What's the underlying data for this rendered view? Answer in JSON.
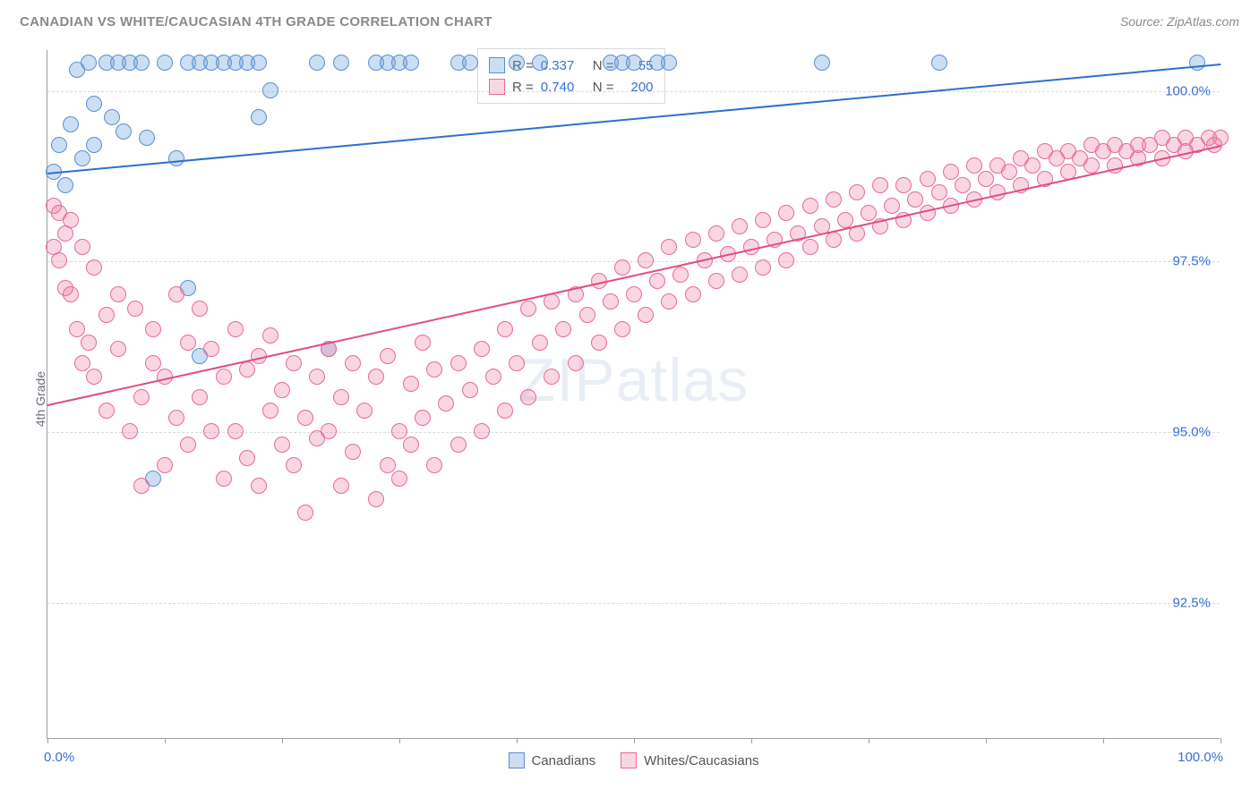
{
  "header": {
    "title": "CANADIAN VS WHITE/CAUCASIAN 4TH GRADE CORRELATION CHART",
    "source": "Source: ZipAtlas.com"
  },
  "axes": {
    "ylabel": "4th Grade",
    "ylim_min": 90.5,
    "ylim_max": 100.6,
    "xlim_min": 0,
    "xlim_max": 100,
    "yticks": [
      {
        "v": 92.5,
        "label": "92.5%"
      },
      {
        "v": 95.0,
        "label": "95.0%"
      },
      {
        "v": 97.5,
        "label": "97.5%"
      },
      {
        "v": 100.0,
        "label": "100.0%"
      }
    ],
    "xticks": [
      0,
      10,
      20,
      30,
      40,
      50,
      60,
      70,
      80,
      90,
      100
    ],
    "xlim_left_label": "0.0%",
    "xlim_right_label": "100.0%",
    "grid_color": "#d7dade",
    "axis_color": "#9aa0a6",
    "tick_label_color": "#3b6fd6"
  },
  "watermark": {
    "text_a": "ZIP",
    "text_b": "atlas"
  },
  "series": [
    {
      "id": "canadians",
      "label": "Canadians",
      "fill": "rgba(108,160,220,0.35)",
      "stroke": "#5a8fd0",
      "line_color": "#2f6fd0",
      "R_label": "R =",
      "R": "0.337",
      "N_label": "N =",
      "N": "55",
      "trend_y_at_x0": 98.8,
      "trend_y_at_x100": 100.4,
      "marker_radius": 9,
      "points": [
        [
          0.5,
          98.8
        ],
        [
          1,
          99.2
        ],
        [
          1.5,
          98.6
        ],
        [
          2,
          99.5
        ],
        [
          2.5,
          100.3
        ],
        [
          3,
          99.0
        ],
        [
          3.5,
          100.4
        ],
        [
          4,
          99.8
        ],
        [
          4,
          99.2
        ],
        [
          5,
          100.4
        ],
        [
          5.5,
          99.6
        ],
        [
          6,
          100.4
        ],
        [
          6.5,
          99.4
        ],
        [
          7,
          100.4
        ],
        [
          8,
          100.4
        ],
        [
          8.5,
          99.3
        ],
        [
          9,
          94.3
        ],
        [
          10,
          100.4
        ],
        [
          11,
          99.0
        ],
        [
          12,
          100.4
        ],
        [
          12,
          97.1
        ],
        [
          13,
          100.4
        ],
        [
          13,
          96.1
        ],
        [
          14,
          100.4
        ],
        [
          15,
          100.4
        ],
        [
          16,
          100.4
        ],
        [
          17,
          100.4
        ],
        [
          18,
          100.4
        ],
        [
          18,
          99.6
        ],
        [
          19,
          100.0
        ],
        [
          23,
          100.4
        ],
        [
          24,
          96.2
        ],
        [
          25,
          100.4
        ],
        [
          28,
          100.4
        ],
        [
          29,
          100.4
        ],
        [
          30,
          100.4
        ],
        [
          31,
          100.4
        ],
        [
          35,
          100.4
        ],
        [
          36,
          100.4
        ],
        [
          40,
          100.4
        ],
        [
          42,
          100.4
        ],
        [
          48,
          100.4
        ],
        [
          49,
          100.4
        ],
        [
          50,
          100.4
        ],
        [
          52,
          100.4
        ],
        [
          53,
          100.4
        ],
        [
          66,
          100.4
        ],
        [
          76,
          100.4
        ],
        [
          98,
          100.4
        ]
      ]
    },
    {
      "id": "whites",
      "label": "Whites/Caucasians",
      "fill": "rgba(235,120,160,0.30)",
      "stroke": "#e76a9a",
      "line_color": "#e04d86",
      "R_label": "R =",
      "R": "0.740",
      "N_label": "N =",
      "N": "200",
      "trend_y_at_x0": 95.4,
      "trend_y_at_x100": 99.2,
      "marker_radius": 9,
      "points": [
        [
          0.5,
          98.3
        ],
        [
          0.5,
          97.7
        ],
        [
          1,
          98.2
        ],
        [
          1,
          97.5
        ],
        [
          1.5,
          97.9
        ],
        [
          1.5,
          97.1
        ],
        [
          2,
          98.1
        ],
        [
          2,
          97.0
        ],
        [
          2.5,
          96.5
        ],
        [
          3,
          97.7
        ],
        [
          3,
          96.0
        ],
        [
          3.5,
          96.3
        ],
        [
          4,
          97.4
        ],
        [
          4,
          95.8
        ],
        [
          5,
          96.7
        ],
        [
          5,
          95.3
        ],
        [
          6,
          96.2
        ],
        [
          6,
          97.0
        ],
        [
          7,
          95.0
        ],
        [
          7.5,
          96.8
        ],
        [
          8,
          95.5
        ],
        [
          8,
          94.2
        ],
        [
          9,
          96.5
        ],
        [
          9,
          96.0
        ],
        [
          10,
          95.8
        ],
        [
          10,
          94.5
        ],
        [
          11,
          97.0
        ],
        [
          11,
          95.2
        ],
        [
          12,
          96.3
        ],
        [
          12,
          94.8
        ],
        [
          13,
          95.5
        ],
        [
          13,
          96.8
        ],
        [
          14,
          95.0
        ],
        [
          14,
          96.2
        ],
        [
          15,
          94.3
        ],
        [
          15,
          95.8
        ],
        [
          16,
          96.5
        ],
        [
          16,
          95.0
        ],
        [
          17,
          94.6
        ],
        [
          17,
          95.9
        ],
        [
          18,
          96.1
        ],
        [
          18,
          94.2
        ],
        [
          19,
          95.3
        ],
        [
          19,
          96.4
        ],
        [
          20,
          94.8
        ],
        [
          20,
          95.6
        ],
        [
          21,
          96.0
        ],
        [
          21,
          94.5
        ],
        [
          22,
          95.2
        ],
        [
          22,
          93.8
        ],
        [
          23,
          95.8
        ],
        [
          23,
          94.9
        ],
        [
          24,
          95.0
        ],
        [
          24,
          96.2
        ],
        [
          25,
          94.2
        ],
        [
          25,
          95.5
        ],
        [
          26,
          96.0
        ],
        [
          26,
          94.7
        ],
        [
          27,
          95.3
        ],
        [
          28,
          94.0
        ],
        [
          28,
          95.8
        ],
        [
          29,
          94.5
        ],
        [
          29,
          96.1
        ],
        [
          30,
          95.0
        ],
        [
          30,
          94.3
        ],
        [
          31,
          95.7
        ],
        [
          31,
          94.8
        ],
        [
          32,
          95.2
        ],
        [
          32,
          96.3
        ],
        [
          33,
          94.5
        ],
        [
          33,
          95.9
        ],
        [
          34,
          95.4
        ],
        [
          35,
          96.0
        ],
        [
          35,
          94.8
        ],
        [
          36,
          95.6
        ],
        [
          37,
          96.2
        ],
        [
          37,
          95.0
        ],
        [
          38,
          95.8
        ],
        [
          39,
          96.5
        ],
        [
          39,
          95.3
        ],
        [
          40,
          96.0
        ],
        [
          41,
          96.8
        ],
        [
          41,
          95.5
        ],
        [
          42,
          96.3
        ],
        [
          43,
          96.9
        ],
        [
          43,
          95.8
        ],
        [
          44,
          96.5
        ],
        [
          45,
          97.0
        ],
        [
          45,
          96.0
        ],
        [
          46,
          96.7
        ],
        [
          47,
          97.2
        ],
        [
          47,
          96.3
        ],
        [
          48,
          96.9
        ],
        [
          49,
          97.4
        ],
        [
          49,
          96.5
        ],
        [
          50,
          97.0
        ],
        [
          51,
          97.5
        ],
        [
          51,
          96.7
        ],
        [
          52,
          97.2
        ],
        [
          53,
          97.7
        ],
        [
          53,
          96.9
        ],
        [
          54,
          97.3
        ],
        [
          55,
          97.8
        ],
        [
          55,
          97.0
        ],
        [
          56,
          97.5
        ],
        [
          57,
          97.9
        ],
        [
          57,
          97.2
        ],
        [
          58,
          97.6
        ],
        [
          59,
          98.0
        ],
        [
          59,
          97.3
        ],
        [
          60,
          97.7
        ],
        [
          61,
          98.1
        ],
        [
          61,
          97.4
        ],
        [
          62,
          97.8
        ],
        [
          63,
          98.2
        ],
        [
          63,
          97.5
        ],
        [
          64,
          97.9
        ],
        [
          65,
          98.3
        ],
        [
          65,
          97.7
        ],
        [
          66,
          98.0
        ],
        [
          67,
          98.4
        ],
        [
          67,
          97.8
        ],
        [
          68,
          98.1
        ],
        [
          69,
          98.5
        ],
        [
          69,
          97.9
        ],
        [
          70,
          98.2
        ],
        [
          71,
          98.6
        ],
        [
          71,
          98.0
        ],
        [
          72,
          98.3
        ],
        [
          73,
          98.6
        ],
        [
          73,
          98.1
        ],
        [
          74,
          98.4
        ],
        [
          75,
          98.7
        ],
        [
          75,
          98.2
        ],
        [
          76,
          98.5
        ],
        [
          77,
          98.8
        ],
        [
          77,
          98.3
        ],
        [
          78,
          98.6
        ],
        [
          79,
          98.9
        ],
        [
          79,
          98.4
        ],
        [
          80,
          98.7
        ],
        [
          81,
          98.9
        ],
        [
          81,
          98.5
        ],
        [
          82,
          98.8
        ],
        [
          83,
          99.0
        ],
        [
          83,
          98.6
        ],
        [
          84,
          98.9
        ],
        [
          85,
          99.1
        ],
        [
          85,
          98.7
        ],
        [
          86,
          99.0
        ],
        [
          87,
          99.1
        ],
        [
          87,
          98.8
        ],
        [
          88,
          99.0
        ],
        [
          89,
          99.2
        ],
        [
          89,
          98.9
        ],
        [
          90,
          99.1
        ],
        [
          91,
          99.2
        ],
        [
          91,
          98.9
        ],
        [
          92,
          99.1
        ],
        [
          93,
          99.2
        ],
        [
          93,
          99.0
        ],
        [
          94,
          99.2
        ],
        [
          95,
          99.3
        ],
        [
          95,
          99.0
        ],
        [
          96,
          99.2
        ],
        [
          97,
          99.3
        ],
        [
          97,
          99.1
        ],
        [
          98,
          99.2
        ],
        [
          99,
          99.3
        ],
        [
          99.5,
          99.2
        ],
        [
          100,
          99.3
        ]
      ]
    }
  ],
  "stats_legend": {
    "value_color": "#3b6fd6",
    "label_color": "#555555",
    "border_color": "#d7dade"
  },
  "bottom_legend": {
    "text_color": "#555555"
  }
}
